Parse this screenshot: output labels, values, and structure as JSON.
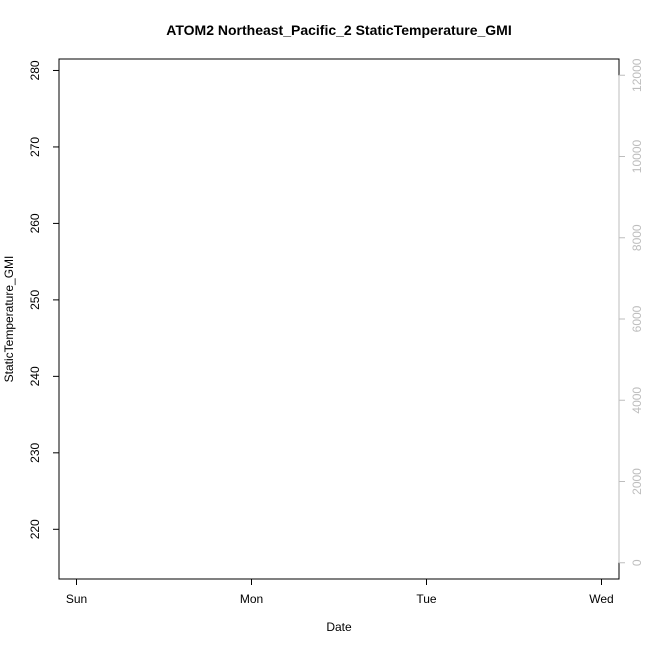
{
  "chart_data": {
    "type": "scatter",
    "title": "ATOM2 Northeast_Pacific_2 StaticTemperature_GMI",
    "xlabel": "Date",
    "ylabel": "StaticTemperature_GMI",
    "x_ticks": [
      "Sun",
      "Mon",
      "Tue",
      "Wed"
    ],
    "xlim": [
      -0.1,
      3.1
    ],
    "ylim": [
      213.5,
      281.5
    ],
    "y_ticks": [
      220,
      230,
      240,
      250,
      260,
      270,
      280
    ],
    "y2lim": [
      -400,
      12400
    ],
    "y2_ticks": [
      0,
      2000,
      4000,
      6000,
      8000,
      10000,
      12000
    ],
    "colors": {
      "axis": "#000000",
      "secondary_axis": "#bdbdbd",
      "line": "#bdbdbd",
      "points_start": "#cc00ff",
      "points_end": "#ff0099"
    },
    "grid": false,
    "series": []
  }
}
